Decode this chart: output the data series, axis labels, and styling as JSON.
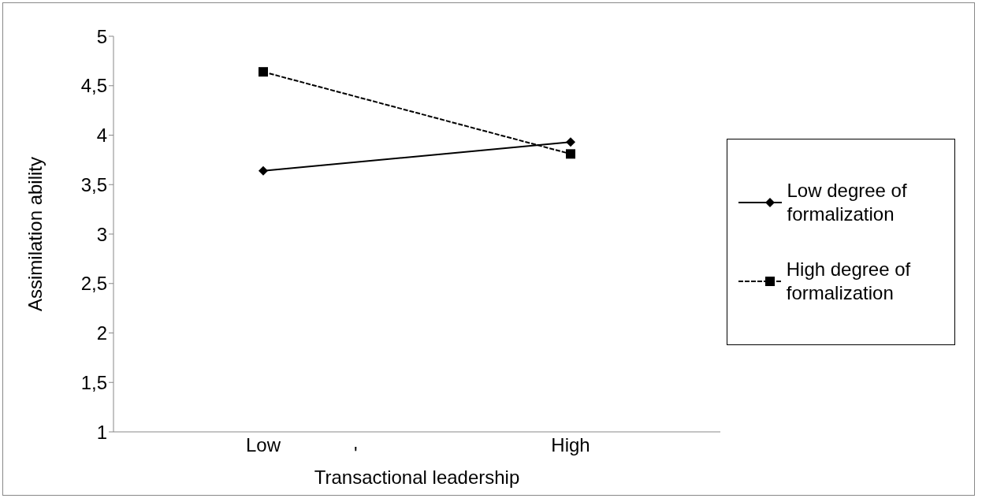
{
  "chart_data": {
    "type": "line",
    "xlabel": "Transactional leadership",
    "ylabel": "Assimilation ability",
    "categories": [
      "Low",
      "High"
    ],
    "series": [
      {
        "name": "Low degree of formalization",
        "color": "#000000",
        "values": [
          3.64,
          3.93
        ],
        "marker": "diamond",
        "line_style": "solid"
      },
      {
        "name": "High degree of formalization",
        "color": "#000000",
        "values": [
          4.64,
          3.81
        ],
        "marker": "square",
        "line_style": "dashed"
      }
    ],
    "ylim": [
      1,
      5
    ],
    "yticks": [
      1,
      {
        "value": 1.5,
        "label": "1,5"
      },
      2,
      {
        "value": 2.5,
        "label": "2,5"
      },
      3,
      {
        "value": 3.5,
        "label": "3,5"
      },
      4,
      {
        "value": 4.5,
        "label": "4,5"
      },
      5
    ],
    "grid": false,
    "legend": "right",
    "annotations": [
      "'"
    ]
  }
}
